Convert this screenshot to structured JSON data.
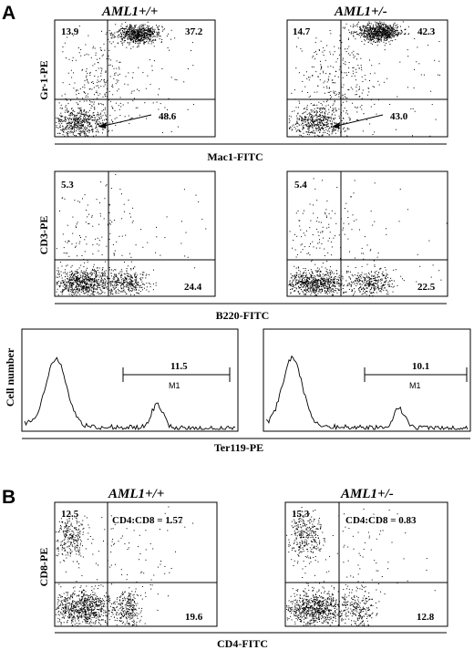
{
  "panel_labels": {
    "A": "A",
    "B": "B"
  },
  "genotypes": {
    "wt": "AML1+/+",
    "het": "AML1+/-"
  },
  "axes": {
    "gr1": "Gr-1-PE",
    "mac1": "Mac1-FITC",
    "cd3": "CD3-PE",
    "b220": "B220-FITC",
    "cellnum": "Cell number",
    "ter119": "Ter119-PE",
    "cd8": "CD8-PE",
    "cd4": "CD4-FITC"
  },
  "chart_data": [
    {
      "type": "scatter",
      "id": "gr1-mac1-wt",
      "genotype": "AML1+/+",
      "xlabel": "Mac1-FITC",
      "ylabel": "Gr-1-PE",
      "quadrants": {
        "upper_left": "13.9",
        "upper_right": "37.2",
        "lower_left": "48.6"
      }
    },
    {
      "type": "scatter",
      "id": "gr1-mac1-het",
      "genotype": "AML1+/-",
      "xlabel": "Mac1-FITC",
      "ylabel": "Gr-1-PE",
      "quadrants": {
        "upper_left": "14.7",
        "upper_right": "42.3",
        "lower_left": "43.0"
      }
    },
    {
      "type": "scatter",
      "id": "cd3-b220-wt",
      "genotype": "AML1+/+",
      "xlabel": "B220-FITC",
      "ylabel": "CD3-PE",
      "quadrants": {
        "upper_left": "5.3",
        "lower_right": "24.4"
      }
    },
    {
      "type": "scatter",
      "id": "cd3-b220-het",
      "genotype": "AML1+/-",
      "xlabel": "B220-FITC",
      "ylabel": "CD3-PE",
      "quadrants": {
        "upper_left": "5.4",
        "lower_right": "22.5"
      }
    },
    {
      "type": "line",
      "id": "ter119-wt",
      "genotype": "AML1+/+",
      "xlabel": "Ter119-PE",
      "ylabel": "Cell number",
      "gate": {
        "name": "M1",
        "percent": "11.5"
      }
    },
    {
      "type": "line",
      "id": "ter119-het",
      "genotype": "AML1+/-",
      "xlabel": "Ter119-PE",
      "ylabel": "Cell number",
      "gate": {
        "name": "M1",
        "percent": "10.1"
      }
    },
    {
      "type": "scatter",
      "id": "cd8-cd4-wt",
      "genotype": "AML1+/+",
      "xlabel": "CD4-FITC",
      "ylabel": "CD8-PE",
      "quadrants": {
        "upper_left": "12.5",
        "lower_right": "19.6"
      },
      "ratio": "CD4:CD8 = 1.57"
    },
    {
      "type": "scatter",
      "id": "cd8-cd4-het",
      "genotype": "AML1+/-",
      "xlabel": "CD4-FITC",
      "ylabel": "CD8-PE",
      "quadrants": {
        "upper_left": "15.3",
        "lower_right": "12.8"
      },
      "ratio": "CD4:CD8 = 0.83"
    }
  ]
}
